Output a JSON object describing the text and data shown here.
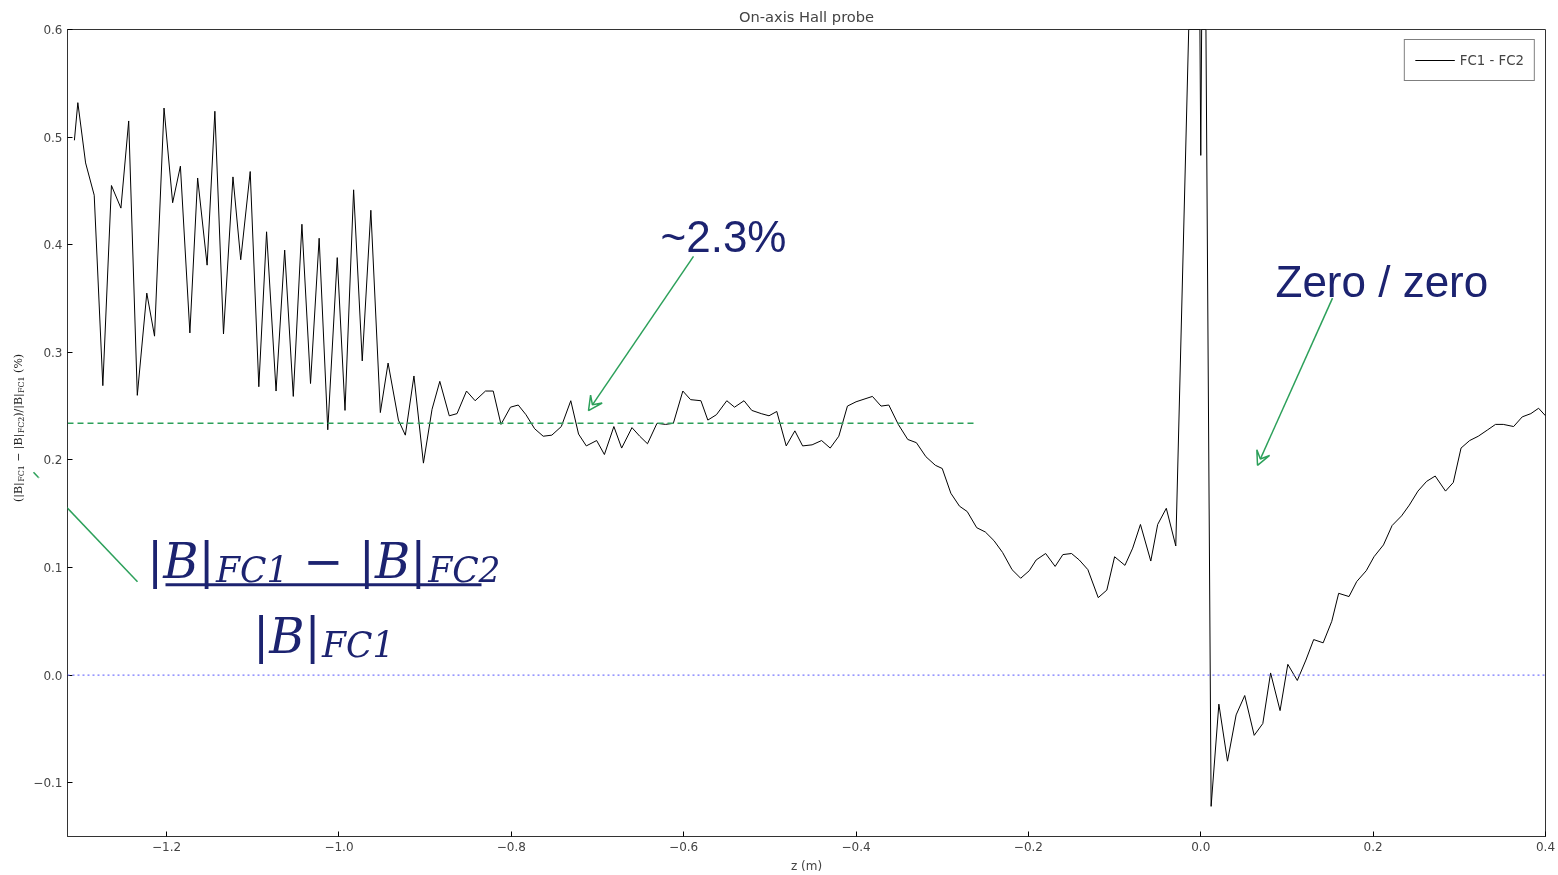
{
  "chart_data": {
    "type": "line",
    "title": "On-axis Hall probe",
    "xlabel": "z (m)",
    "ylabel": "(|B|$_{FC1}$ − |B|$_{FC2}$)/|B|$_{FC1}$ (%)",
    "xlim": [
      -1.315,
      0.4
    ],
    "ylim": [
      -0.15,
      0.6
    ],
    "xticks": [
      -1.2,
      {
        "value": -1.0,
        "label": "−1.0"
      },
      -0.8,
      -0.6,
      -0.4,
      -0.2,
      {
        "value": 0.0,
        "label": "0.0"
      },
      0.2,
      0.4
    ],
    "yticks": [
      -0.1,
      {
        "value": 0.0,
        "label": "0.0"
      },
      0.1,
      0.2,
      0.3,
      0.4,
      0.5,
      0.6
    ],
    "grid": false,
    "legend": "top right",
    "marker": "none",
    "series": [
      {
        "name": "FC1 - FC2",
        "color": "#000000",
        "line_style": "solid",
        "x": [
          -1.307,
          -1.303,
          -1.294,
          -1.284,
          -1.274,
          -1.264,
          -1.253,
          -1.244,
          -1.234,
          -1.223,
          -1.214,
          -1.203,
          -1.193,
          -1.184,
          -1.173,
          -1.164,
          -1.153,
          -1.144,
          -1.134,
          -1.123,
          -1.114,
          -1.103,
          -1.093,
          -1.084,
          -1.073,
          -1.063,
          -1.053,
          -1.043,
          -1.033,
          -1.023,
          -1.013,
          -1.002,
          -0.993,
          -0.983,
          -0.973,
          -0.963,
          -0.952,
          -0.943,
          -0.931,
          -0.923,
          -0.913,
          -0.902,
          -0.892,
          -0.883,
          -0.872,
          -0.863,
          -0.852,
          -0.842,
          -0.83,
          -0.821,
          -0.812,
          -0.801,
          -0.792,
          -0.783,
          -0.773,
          -0.763,
          -0.753,
          -0.742,
          -0.731,
          -0.722,
          -0.713,
          -0.701,
          -0.692,
          -0.681,
          -0.672,
          -0.66,
          -0.651,
          -0.642,
          -0.631,
          -0.621,
          -0.612,
          -0.601,
          -0.592,
          -0.58,
          -0.572,
          -0.562,
          -0.55,
          -0.541,
          -0.53,
          -0.521,
          -0.51,
          -0.501,
          -0.492,
          -0.481,
          -0.471,
          -0.462,
          -0.451,
          -0.44,
          -0.43,
          -0.42,
          -0.41,
          -0.4,
          -0.381,
          -0.371,
          -0.362,
          -0.351,
          -0.34,
          -0.33,
          -0.319,
          -0.308,
          -0.3,
          -0.29,
          -0.28,
          -0.271,
          -0.26,
          -0.25,
          -0.24,
          -0.23,
          -0.219,
          -0.209,
          -0.199,
          -0.191,
          -0.18,
          -0.169,
          -0.16,
          -0.15,
          -0.141,
          -0.131,
          -0.119,
          -0.109,
          -0.1,
          -0.088,
          -0.079,
          -0.07,
          -0.058,
          -0.05,
          -0.04,
          -0.029,
          -0.014,
          -0.001,
          0.0,
          0.001,
          0.006,
          0.012,
          0.021,
          0.031,
          0.041,
          0.051,
          0.062,
          0.072,
          0.081,
          0.092,
          0.101,
          0.112,
          0.122,
          0.131,
          0.142,
          0.152,
          0.16,
          0.172,
          0.181,
          0.192,
          0.201,
          0.212,
          0.222,
          0.233,
          0.242,
          0.252,
          0.262,
          0.272,
          0.284,
          0.293,
          0.302,
          0.312,
          0.322,
          0.333,
          0.342,
          0.351,
          0.363,
          0.373,
          0.383,
          0.392,
          0.4
        ],
        "values": [
          0.497,
          0.532,
          0.476,
          0.446,
          0.269,
          0.455,
          0.434,
          0.515,
          0.26,
          0.355,
          0.315,
          0.527,
          0.439,
          0.473,
          0.318,
          0.462,
          0.381,
          0.524,
          0.317,
          0.463,
          0.386,
          0.468,
          0.268,
          0.412,
          0.264,
          0.395,
          0.259,
          0.419,
          0.271,
          0.406,
          0.228,
          0.388,
          0.246,
          0.451,
          0.292,
          0.432,
          0.244,
          0.29,
          0.237,
          0.223,
          0.278,
          0.197,
          0.247,
          0.273,
          0.241,
          0.243,
          0.264,
          0.255,
          0.264,
          0.264,
          0.233,
          0.249,
          0.251,
          0.242,
          0.229,
          0.222,
          0.223,
          0.231,
          0.255,
          0.224,
          0.213,
          0.218,
          0.205,
          0.231,
          0.211,
          0.23,
          0.222,
          0.215,
          0.234,
          0.233,
          0.234,
          0.264,
          0.256,
          0.255,
          0.237,
          0.242,
          0.255,
          0.249,
          0.255,
          0.246,
          0.243,
          0.241,
          0.245,
          0.213,
          0.227,
          0.213,
          0.214,
          0.218,
          0.211,
          0.222,
          0.25,
          0.254,
          0.259,
          0.25,
          0.251,
          0.233,
          0.219,
          0.216,
          0.203,
          0.195,
          0.192,
          0.169,
          0.157,
          0.152,
          0.137,
          0.133,
          0.125,
          0.114,
          0.098,
          0.09,
          0.097,
          0.107,
          0.113,
          0.101,
          0.112,
          0.113,
          0.107,
          0.098,
          0.072,
          0.079,
          0.11,
          0.102,
          0.118,
          0.14,
          0.106,
          0.14,
          0.155,
          0.12,
          0.6,
          0.6,
          0.483,
          0.6,
          0.6,
          -0.122,
          -0.027,
          -0.08,
          -0.037,
          -0.019,
          -0.056,
          -0.045,
          0.002,
          -0.033,
          0.01,
          -0.005,
          0.014,
          0.033,
          0.03,
          0.05,
          0.076,
          0.073,
          0.087,
          0.097,
          0.11,
          0.121,
          0.139,
          0.148,
          0.158,
          0.171,
          0.18,
          0.185,
          0.171,
          0.179,
          0.211,
          0.218,
          0.222,
          0.228,
          0.233,
          0.233,
          0.231,
          0.24,
          0.243,
          0.248,
          0.241
        ]
      },
      {
        "color": "#2ca05a",
        "line_style": "dashed",
        "x": [
          -1.315,
          -0.263
        ],
        "values": [
          0.234,
          0.234
        ]
      }
    ],
    "ref_lines": [
      {
        "axis": "y",
        "value": 0.0,
        "color": "#7777ff",
        "line_style": "dotted"
      }
    ],
    "annotations": [
      "~2.3%",
      "Zero / zero",
      "|B|$_{FC1}$ − |B|$_{FC2}$",
      "|B|$_{FC1}$"
    ]
  }
}
